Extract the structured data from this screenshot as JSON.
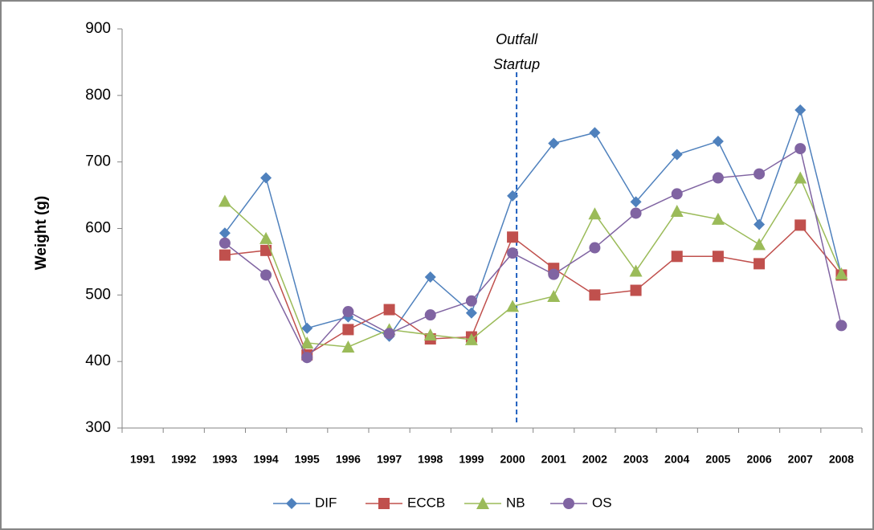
{
  "chart_data": {
    "type": "line",
    "y_label": "Weight (g)",
    "annotation": [
      "Outfall",
      "Startup"
    ],
    "categories": [
      "1991",
      "1992",
      "1993",
      "1994",
      "1995",
      "1996",
      "1997",
      "1998",
      "1999",
      "2000",
      "2001",
      "2002",
      "2003",
      "2004",
      "2005",
      "2006",
      "2007",
      "2008"
    ],
    "series": [
      {
        "name": "DIF",
        "color": "#4f81bd",
        "marker": "diamond",
        "values": [
          null,
          null,
          593,
          676,
          450,
          467,
          438,
          527,
          473,
          649,
          728,
          744,
          640,
          711,
          731,
          606,
          778,
          530
        ]
      },
      {
        "name": "ECCB",
        "color": "#c0504d",
        "marker": "square",
        "values": [
          null,
          null,
          560,
          567,
          410,
          448,
          478,
          434,
          437,
          587,
          540,
          500,
          507,
          558,
          558,
          547,
          605,
          530
        ]
      },
      {
        "name": "NB",
        "color": "#9bbb59",
        "marker": "triangle",
        "values": [
          null,
          null,
          641,
          585,
          428,
          422,
          448,
          440,
          433,
          483,
          498,
          622,
          536,
          626,
          614,
          576,
          676,
          532
        ]
      },
      {
        "name": "OS",
        "color": "#8064a2",
        "marker": "circle",
        "values": [
          null,
          null,
          578,
          530,
          406,
          475,
          442,
          470,
          491,
          563,
          531,
          571,
          623,
          652,
          676,
          682,
          720,
          454
        ]
      }
    ],
    "ylim": [
      300,
      900
    ],
    "yticks": [
      300,
      400,
      500,
      600,
      700,
      800,
      900
    ],
    "grid": false,
    "legend": "bottom"
  }
}
